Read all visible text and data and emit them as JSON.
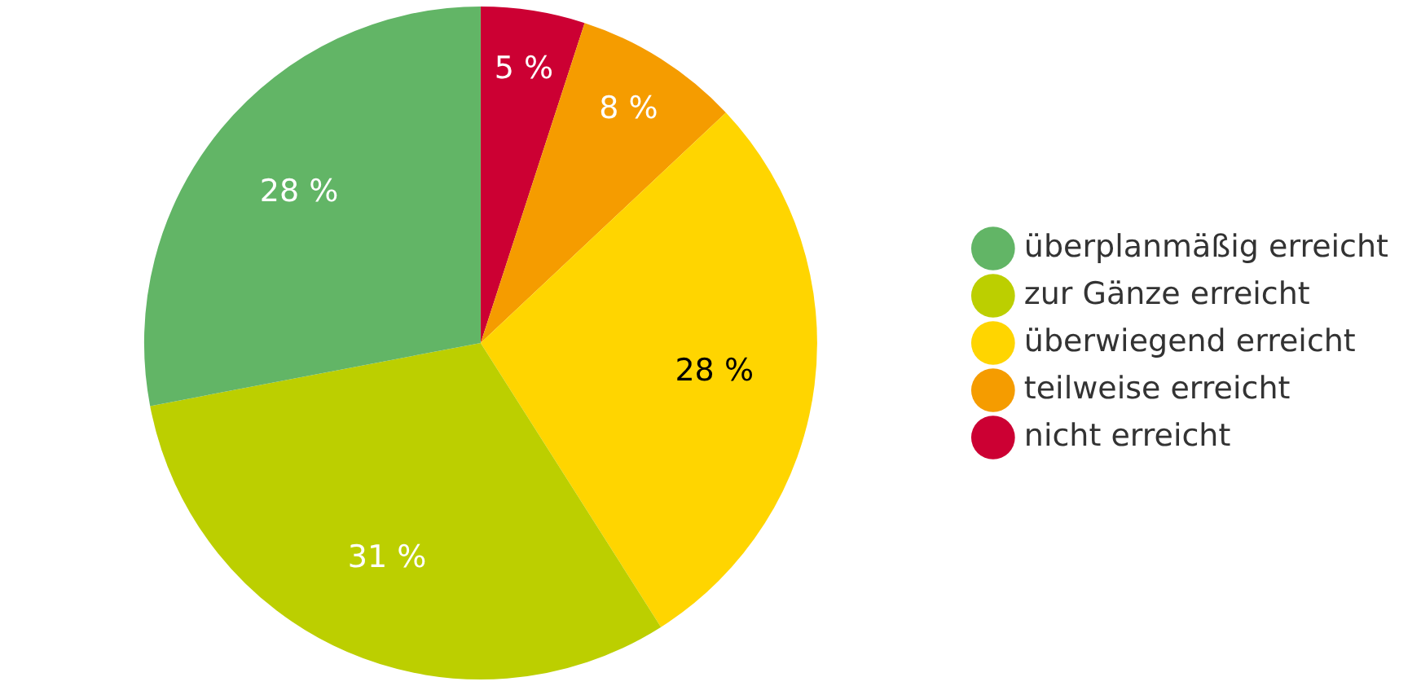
{
  "chart_data": {
    "type": "pie",
    "categories": [
      "nicht erreicht",
      "teilweise erreicht",
      "überwiegend erreicht",
      "zur Gänze erreicht",
      "überplanmäßig erreicht"
    ],
    "values": [
      5,
      8,
      28,
      31,
      28
    ],
    "colors": [
      "#cc0033",
      "#f59c00",
      "#ffd500",
      "#bccf00",
      "#62b566"
    ],
    "value_labels": [
      "5 %",
      "8 %",
      "28 %",
      "31 %",
      "28 %"
    ],
    "legend": "right"
  }
}
